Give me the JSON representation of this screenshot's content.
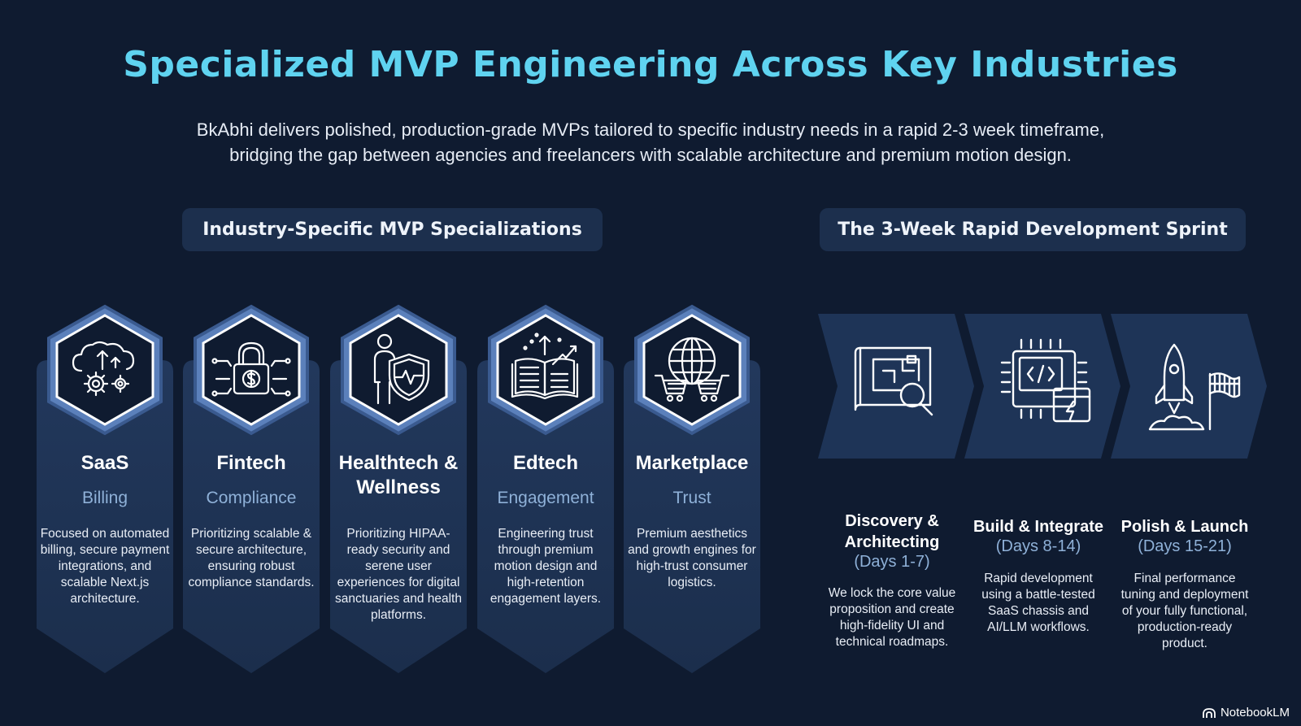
{
  "header": {
    "title": "Specialized MVP Engineering Across Key Industries",
    "subtitle_line1": "BkAbhi delivers polished, production-grade MVPs tailored to specific industry needs in a rapid 2-3 week timeframe,",
    "subtitle_line2": "bridging the gap between agencies and freelancers with scalable architecture and premium motion design."
  },
  "sections": {
    "industries_label": "Industry-Specific MVP Specializations",
    "sprint_label": "The 3-Week Rapid Development Sprint"
  },
  "industries": [
    {
      "title": "SaaS",
      "subtitle": "Billing",
      "icon": "cloud-gears-icon",
      "description": "Focused on automated billing, secure payment integrations, and scalable Next.js architecture."
    },
    {
      "title": "Fintech",
      "subtitle": "Compliance",
      "icon": "padlock-dollar-icon",
      "description": "Prioritizing scalable & secure architecture, ensuring robust compliance standards."
    },
    {
      "title": "Healthtech & Wellness",
      "subtitle": "",
      "icon": "person-shield-icon",
      "description": "Prioritizing HIPAA-ready security and serene user experiences for digital sanctuaries and health platforms."
    },
    {
      "title": "Edtech",
      "subtitle": "Engagement",
      "icon": "open-book-growth-icon",
      "description": "Engineering trust through premium motion design and high-retention engagement layers."
    },
    {
      "title": "Marketplace",
      "subtitle": "Trust",
      "icon": "globe-carts-icon",
      "description": "Premium aesthetics and growth engines for high-trust consumer logistics."
    }
  ],
  "sprint": [
    {
      "title": "Discovery & Architecting",
      "days": "(Days 1-7)",
      "icon": "blueprint-magnifier-icon",
      "description": "We lock the core value proposition and create high-fidelity UI and technical roadmaps."
    },
    {
      "title": "Build & Integrate",
      "days": "(Days 8-14)",
      "icon": "chip-code-icon",
      "description": "Rapid development using a battle-tested SaaS chassis and AI/LLM workflows."
    },
    {
      "title": "Polish & Launch",
      "days": "(Days 15-21)",
      "icon": "rocket-flag-icon",
      "description": "Final performance tuning and deployment of your fully functional, production-ready product."
    }
  ],
  "branding": {
    "label": "NotebookLM"
  },
  "colors": {
    "background": "#0f1b30",
    "accent": "#5fd3f0",
    "card": "#1f3456",
    "hex_border": "#5b80bb"
  }
}
